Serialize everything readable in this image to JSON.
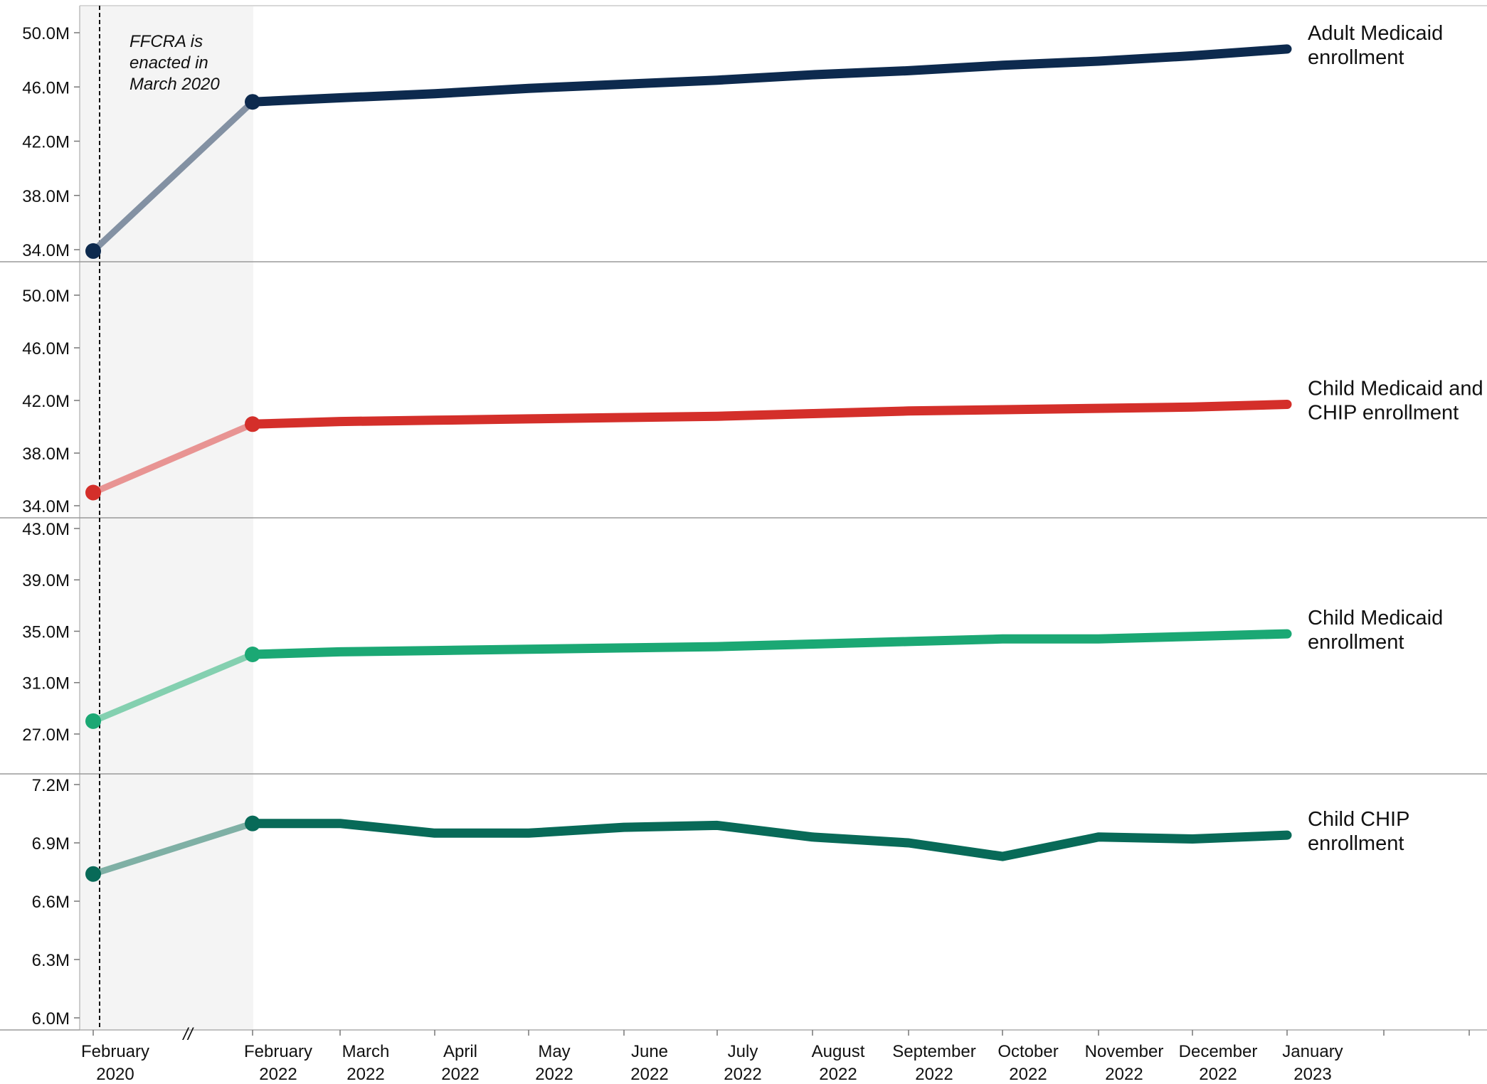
{
  "chart_data": {
    "type": "line",
    "annotation": [
      "FFCRA is",
      "enacted in",
      "March 2020"
    ],
    "break_marker": "//",
    "x_categories": [
      [
        "February",
        "2020"
      ],
      [
        "February",
        "2022"
      ],
      [
        "March",
        "2022"
      ],
      [
        "April",
        "2022"
      ],
      [
        "May",
        "2022"
      ],
      [
        "June",
        "2022"
      ],
      [
        "July",
        "2022"
      ],
      [
        "August",
        "2022"
      ],
      [
        "September",
        "2022"
      ],
      [
        "October",
        "2022"
      ],
      [
        "November",
        "2022"
      ],
      [
        "December",
        "2022"
      ],
      [
        "January",
        "2023"
      ]
    ],
    "panels": [
      {
        "label": [
          "Adult Medicaid",
          "enrollment"
        ],
        "color": "#0d2a4e",
        "lead_color": "#8391a3",
        "ylim": [
          34.0,
          50.0
        ],
        "yticks": [
          "50.0M",
          "46.0M",
          "42.0M",
          "38.0M",
          "34.0M"
        ],
        "ytick_values": [
          50.0,
          46.0,
          42.0,
          38.0,
          34.0
        ],
        "unit": "M",
        "values": [
          33.9,
          44.9,
          45.2,
          45.5,
          45.9,
          46.2,
          46.5,
          46.9,
          47.2,
          47.6,
          47.9,
          48.3,
          48.8
        ]
      },
      {
        "label": [
          "Child Medicaid and",
          "CHIP enrollment"
        ],
        "color": "#d42f2a",
        "lead_color": "#e89493",
        "ylim": [
          34.0,
          52.0
        ],
        "yticks": [
          "50.0M",
          "46.0M",
          "42.0M",
          "38.0M",
          "34.0M"
        ],
        "ytick_values": [
          50.0,
          46.0,
          42.0,
          38.0,
          34.0
        ],
        "unit": "M",
        "values": [
          35.0,
          40.2,
          40.4,
          40.5,
          40.6,
          40.7,
          40.8,
          41.0,
          41.2,
          41.3,
          41.4,
          41.5,
          41.7
        ]
      },
      {
        "label": [
          "Child Medicaid",
          "enrollment"
        ],
        "color": "#1ba874",
        "lead_color": "#84d0b0",
        "ylim": [
          26.0,
          43.0
        ],
        "yticks": [
          "43.0M",
          "39.0M",
          "35.0M",
          "31.0M",
          "27.0M"
        ],
        "ytick_values": [
          43.0,
          39.0,
          35.0,
          31.0,
          27.0
        ],
        "unit": "M",
        "values": [
          28.0,
          33.2,
          33.4,
          33.5,
          33.6,
          33.7,
          33.8,
          34.0,
          34.2,
          34.4,
          34.4,
          34.6,
          34.8
        ]
      },
      {
        "label": [
          "Child CHIP",
          "enrollment"
        ],
        "color": "#086a58",
        "lead_color": "#7fb0a5",
        "ylim": [
          6.0,
          7.2
        ],
        "yticks": [
          "7.2M",
          "6.9M",
          "6.6M",
          "6.3M",
          "6.0M"
        ],
        "ytick_values": [
          7.2,
          6.9,
          6.6,
          6.3,
          6.0
        ],
        "unit": "M",
        "values": [
          6.74,
          7.0,
          7.0,
          6.95,
          6.95,
          6.98,
          6.99,
          6.93,
          6.9,
          6.83,
          6.93,
          6.92,
          6.94
        ]
      }
    ]
  }
}
